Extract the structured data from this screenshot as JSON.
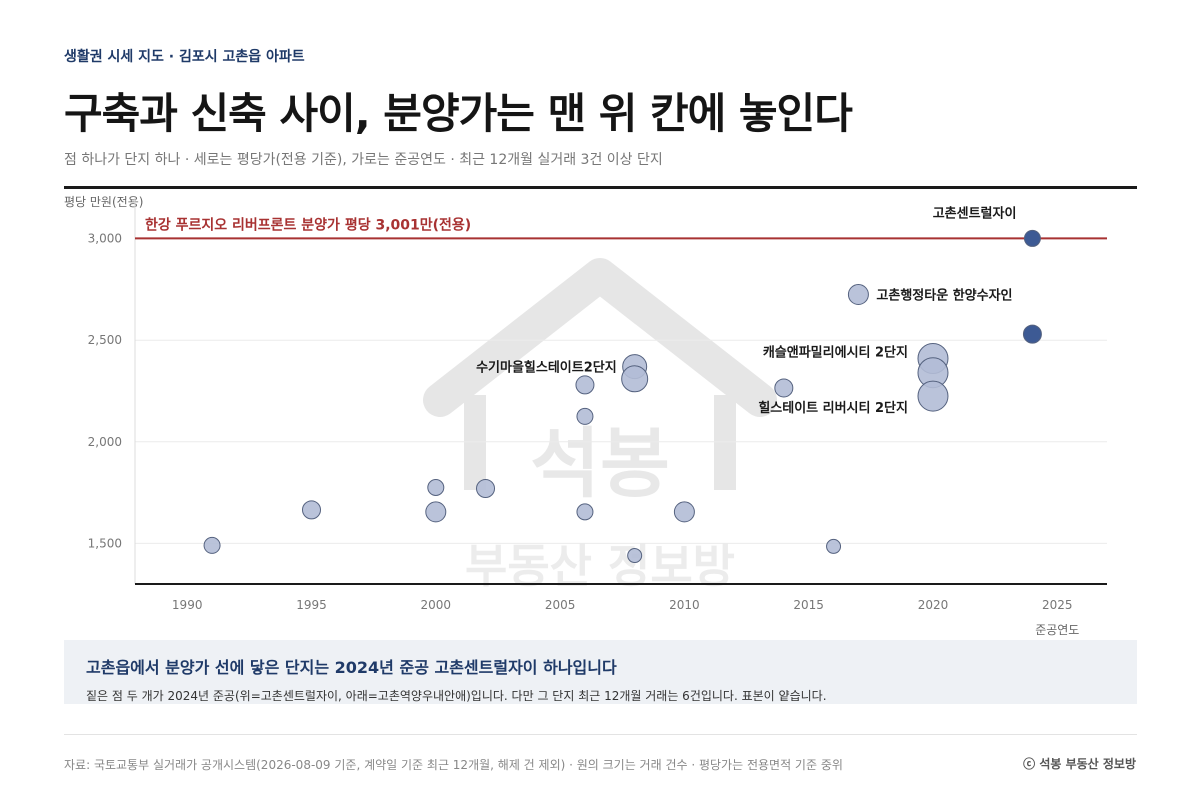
{
  "header": {
    "kicker": "생활권 시세 지도  ·  김포시 고촌읍 아파트",
    "title": "구축과 신축 사이, 분양가는 맨 위 칸에 놓인다",
    "subtitle": "점 하나가 단지 하나  ·  세로는 평당가(전용 기준), 가로는 준공연도  ·  최근 12개월 실거래 3건 이상 단지"
  },
  "watermark": {
    "line1": "석봉",
    "line2": "부동산 정보방"
  },
  "chart_data": {
    "type": "scatter",
    "ylabel": "평당 만원(전용)",
    "xlabel": "준공연도",
    "xlim": [
      1987852,
      2027
    ],
    "ylim": [
      1300,
      3200
    ],
    "x_ticks": [
      1990,
      1995,
      2000,
      2005,
      2010,
      2015,
      2020,
      2025
    ],
    "y_ticks": [
      1500,
      2000,
      2500,
      3000
    ],
    "y_tick_labels": [
      "1,500",
      "2,000",
      "2,500",
      "3,000"
    ],
    "grid": true,
    "size_encoding": "원의 크기는 거래 건수",
    "reference_line": {
      "value": 3001,
      "label": "한강 푸르지오 리버프론트 분양가 평당 3,001만(전용)",
      "color": "#a83232"
    },
    "colors": {
      "default": "#b3bdd6",
      "highlight": "#3d5a94",
      "stroke": "#55627f"
    },
    "points": [
      {
        "x": 1991,
        "y": 1490,
        "r": 8,
        "label": ""
      },
      {
        "x": 1995,
        "y": 1665,
        "r": 9,
        "label": ""
      },
      {
        "x": 2000,
        "y": 1775,
        "r": 8,
        "label": ""
      },
      {
        "x": 2000,
        "y": 1655,
        "r": 10,
        "label": ""
      },
      {
        "x": 2002,
        "y": 1770,
        "r": 9,
        "label": ""
      },
      {
        "x": 2006,
        "y": 2280,
        "r": 9,
        "label": ""
      },
      {
        "x": 2006,
        "y": 2125,
        "r": 8,
        "label": ""
      },
      {
        "x": 2006,
        "y": 1655,
        "r": 8,
        "label": ""
      },
      {
        "x": 2008,
        "y": 2370,
        "r": 12,
        "label": "수기마을힐스테이트2단지",
        "label_side": "left"
      },
      {
        "x": 2008,
        "y": 2310,
        "r": 13,
        "label": ""
      },
      {
        "x": 2008,
        "y": 1440,
        "r": 7,
        "label": ""
      },
      {
        "x": 2010,
        "y": 1655,
        "r": 10,
        "label": ""
      },
      {
        "x": 2014,
        "y": 2265,
        "r": 9,
        "label": ""
      },
      {
        "x": 2016,
        "y": 1485,
        "r": 7,
        "label": ""
      },
      {
        "x": 2017,
        "y": 2725,
        "r": 10,
        "label": "고촌행정타운 한양수자인",
        "label_side": "right"
      },
      {
        "x": 2020,
        "y": 2410,
        "r": 15,
        "label": "캐슬앤파밀리에시티 2단지",
        "label_side": "left-above"
      },
      {
        "x": 2020,
        "y": 2340,
        "r": 15,
        "label": ""
      },
      {
        "x": 2020,
        "y": 2225,
        "r": 15,
        "label": "힐스테이트 리버시티 2단지",
        "label_side": "left-below"
      },
      {
        "x": 2024,
        "y": 3001,
        "r": 8,
        "label": "고촌센트럴자이",
        "label_side": "above-left",
        "highlight": true
      },
      {
        "x": 2024,
        "y": 2530,
        "r": 9,
        "label": "",
        "highlight": true
      }
    ]
  },
  "note": {
    "title": "고촌읍에서 분양가 선에 닿은 단지는 2024년 준공 고촌센트럴자이 하나입니다",
    "body": "짙은 점 두 개가 2024년 준공(위=고촌센트럴자이, 아래=고촌역양우내안애)입니다. 다만 그 단지 최근 12개월 거래는 6건입니다. 표본이 얕습니다."
  },
  "footer": {
    "source": "자료: 국토교통부 실거래가 공개시스템(2026-08-09 기준, 계약일 기준 최근 12개월, 해제 건 제외)  ·  원의 크기는 거래 건수  ·  평당가는 전용면적 기준 중위",
    "brand": "ⓒ 석봉 부동산 정보방"
  }
}
